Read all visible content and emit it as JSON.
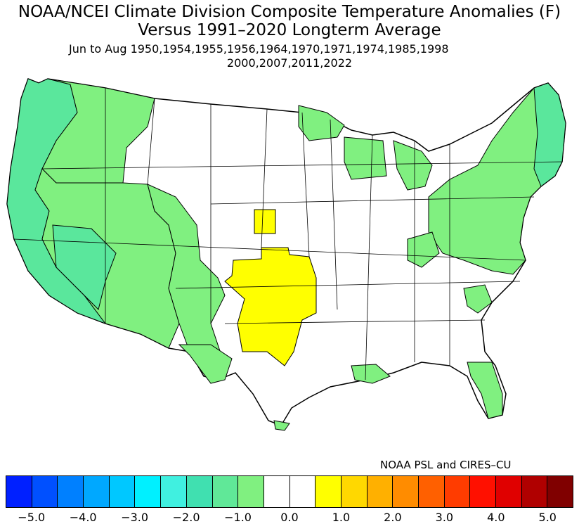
{
  "title": {
    "line1": "NOAA/NCEI Climate Division Composite Temperature Anomalies (F)",
    "line2": "Versus 1991–2020 Longterm Average",
    "line3": "Jun to Aug  1950,1954,1955,1956,1964,1970,1971,1974,1985,1998",
    "line4": "2000,2007,2011,2022"
  },
  "credit": "NOAA PSL and CIRES–CU",
  "colors": {
    "cool_1": "#80f080",
    "cool_2": "#5ae79c",
    "cool_3": "#40e0b0",
    "warm_1": "#ffff00",
    "neutral": "#ffffff"
  },
  "colorbar": {
    "colors": [
      "#0020ff",
      "#0050ff",
      "#0080ff",
      "#00a8ff",
      "#00c8ff",
      "#00f0ff",
      "#40f0e0",
      "#40e0b0",
      "#60e898",
      "#80f080",
      "#ffffff",
      "#ffffff",
      "#ffff00",
      "#ffd800",
      "#ffb000",
      "#ff8c00",
      "#ff6000",
      "#ff3c00",
      "#ff1000",
      "#e00000",
      "#b00000",
      "#800000"
    ],
    "tick_labels": [
      "−5.0",
      "−4.0",
      "−3.0",
      "−2.0",
      "−1.0",
      "0.0",
      "1.0",
      "2.0",
      "3.0",
      "4.0",
      "5.0"
    ]
  }
}
